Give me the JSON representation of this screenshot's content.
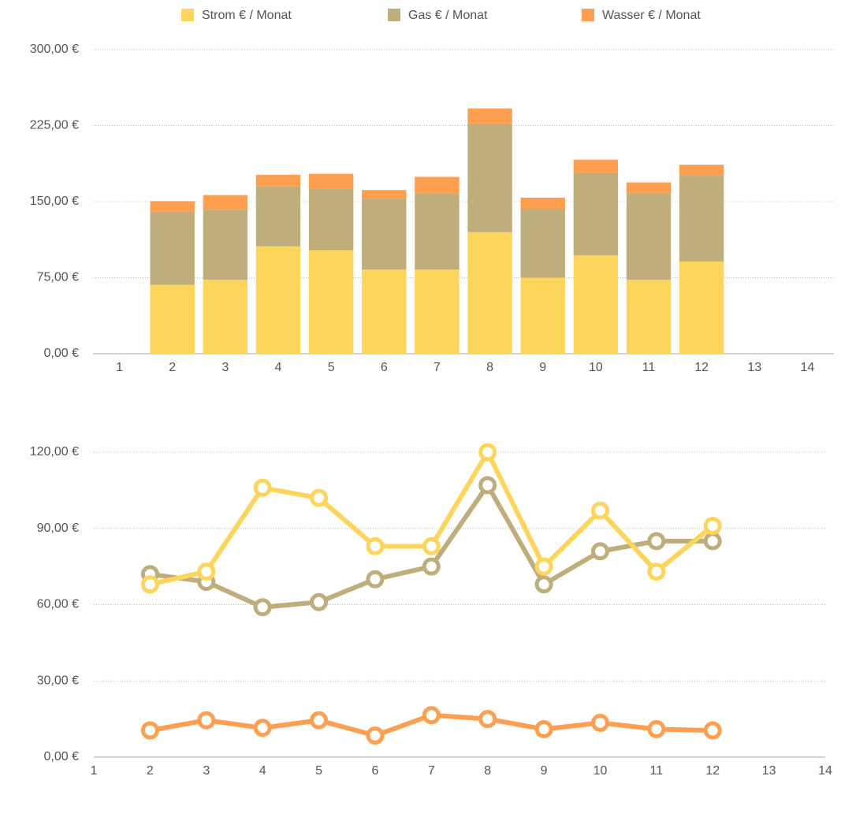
{
  "chart_data": [
    {
      "type": "bar",
      "stacked": true,
      "legend": "top",
      "grid": true,
      "categories": [
        "1",
        "2",
        "3",
        "4",
        "5",
        "6",
        "7",
        "8",
        "9",
        "10",
        "11",
        "12",
        "13",
        "14"
      ],
      "series": [
        {
          "name": "Strom € / Monat",
          "color": "#fdd55b",
          "values": [
            null,
            68,
            73,
            106,
            102,
            83,
            83,
            120,
            75,
            97,
            73,
            91,
            null,
            null
          ]
        },
        {
          "name": "Gas € / Monat",
          "color": "#bfae7c",
          "values": [
            null,
            72,
            69,
            59,
            61,
            70,
            75,
            107,
            68,
            81,
            85,
            85,
            null,
            null
          ]
        },
        {
          "name": "Wasser € / Monat",
          "color": "#fd9f4e",
          "values": [
            null,
            10.5,
            14.5,
            11.5,
            14.5,
            8.5,
            16.5,
            15,
            11,
            13.5,
            11,
            10.5,
            null,
            null
          ]
        }
      ],
      "ylim": [
        0,
        300
      ],
      "yticks": [
        {
          "value": 0,
          "label": "0,00 €"
        },
        {
          "value": 75,
          "label": "75,00 €"
        },
        {
          "value": 150,
          "label": "150,00 €"
        },
        {
          "value": 225,
          "label": "225,00 €"
        },
        {
          "value": 300,
          "label": "300,00 €"
        }
      ]
    },
    {
      "type": "line",
      "grid": true,
      "x": [
        1,
        2,
        3,
        4,
        5,
        6,
        7,
        8,
        9,
        10,
        11,
        12,
        13,
        14
      ],
      "series": [
        {
          "color": "#bfae7c",
          "values": [
            null,
            72,
            69,
            59,
            61,
            70,
            75,
            107,
            68,
            81,
            85,
            85,
            null,
            null
          ]
        },
        {
          "color": "#fdd55b",
          "values": [
            null,
            68,
            73,
            106,
            102,
            83,
            83,
            120,
            75,
            97,
            73,
            91,
            null,
            null
          ]
        },
        {
          "color": "#fd9f4e",
          "values": [
            null,
            10.5,
            14.5,
            11.5,
            14.5,
            8.5,
            16.5,
            15,
            11,
            13.5,
            11,
            10.5,
            null,
            null
          ]
        }
      ],
      "xlim": [
        1,
        14
      ],
      "xticks": [
        1,
        2,
        3,
        4,
        5,
        6,
        7,
        8,
        9,
        10,
        11,
        12,
        13,
        14
      ],
      "ylim": [
        0,
        120
      ],
      "yticks": [
        {
          "value": 0,
          "label": "0,00 €"
        },
        {
          "value": 30,
          "label": "30,00 €"
        },
        {
          "value": 60,
          "label": "60,00 €"
        },
        {
          "value": 90,
          "label": "90,00 €"
        },
        {
          "value": 120,
          "label": "120,00 €"
        }
      ]
    }
  ]
}
